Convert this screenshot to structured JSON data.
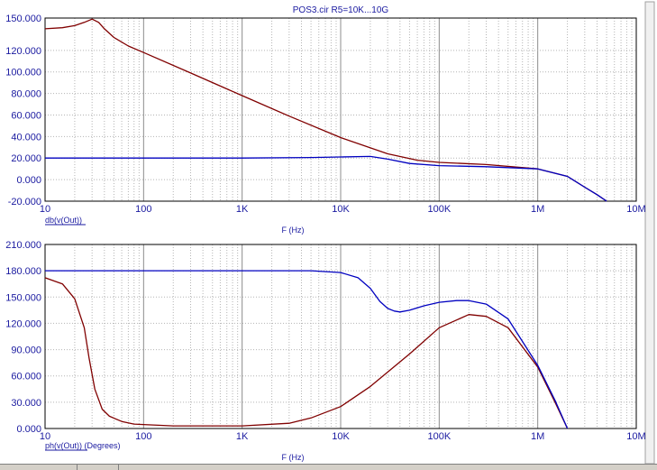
{
  "window": {
    "title": "POS3.cir R5=10K...10G"
  },
  "chart_data": [
    {
      "type": "line",
      "title": "POS3.cir R5=10K...10G",
      "xlabel": "F (Hz)",
      "ylabel": "db(v(Out))",
      "xscale": "log",
      "xlim": [
        10,
        10000000
      ],
      "ylim": [
        -20,
        150
      ],
      "x_ticks": [
        "10",
        "100",
        "1K",
        "10K",
        "100K",
        "1M",
        "10M"
      ],
      "y_ticks": [
        "150.000",
        "120.000",
        "100.000",
        "80.000",
        "60.000",
        "40.000",
        "20.000",
        "0.000",
        "-20.000"
      ],
      "grid": true,
      "series": [
        {
          "color": "#800000",
          "x": [
            10,
            15,
            20,
            25,
            30,
            35,
            40,
            50,
            70,
            100,
            300,
            1000,
            3000,
            10000,
            30000,
            60000,
            100000,
            300000,
            1000000,
            2000000,
            3000000,
            4000000,
            5000000
          ],
          "y": [
            140,
            141,
            143,
            146,
            149,
            146,
            140,
            132,
            124,
            118,
            99,
            78,
            59,
            39,
            24,
            18,
            16,
            14,
            10,
            3,
            -7,
            -14,
            -20
          ]
        },
        {
          "color": "#0000c0",
          "x": [
            10,
            100,
            1000,
            5000,
            10000,
            20000,
            30000,
            50000,
            100000,
            300000,
            1000000,
            2000000,
            3000000,
            4000000,
            5000000
          ],
          "y": [
            20,
            20,
            20,
            20.5,
            21,
            21.5,
            19,
            15,
            13,
            12,
            10,
            3,
            -7,
            -14,
            -20
          ]
        }
      ]
    },
    {
      "type": "line",
      "xlabel": "F (Hz)",
      "ylabel": "ph(v(Out)) (Degrees)",
      "xscale": "log",
      "xlim": [
        10,
        10000000
      ],
      "ylim": [
        0,
        210
      ],
      "x_ticks": [
        "10",
        "100",
        "1K",
        "10K",
        "100K",
        "1M",
        "10M"
      ],
      "y_ticks": [
        "210.000",
        "180.000",
        "150.000",
        "120.000",
        "90.000",
        "60.000",
        "30.000",
        "0.000"
      ],
      "grid": true,
      "series": [
        {
          "color": "#800000",
          "x": [
            10,
            15,
            20,
            25,
            28,
            32,
            38,
            45,
            60,
            80,
            100,
            200,
            1000,
            3000,
            5000,
            10000,
            20000,
            50000,
            100000,
            200000,
            300000,
            500000,
            1000000,
            1500000,
            2000000
          ],
          "y": [
            172,
            165,
            148,
            115,
            80,
            45,
            22,
            14,
            8,
            5,
            4.5,
            3,
            3,
            6,
            12,
            25,
            48,
            85,
            115,
            130,
            128,
            115,
            70,
            30,
            0
          ]
        },
        {
          "color": "#0000c0",
          "x": [
            10,
            100,
            1000,
            5000,
            10000,
            15000,
            20000,
            25000,
            30000,
            35000,
            40000,
            50000,
            70000,
            100000,
            150000,
            200000,
            300000,
            500000,
            1000000,
            1500000,
            2000000
          ],
          "y": [
            180,
            180,
            180,
            180,
            178,
            172,
            160,
            145,
            137,
            134,
            133,
            135,
            140,
            144,
            146,
            146,
            142,
            125,
            72,
            32,
            0
          ]
        }
      ]
    }
  ]
}
